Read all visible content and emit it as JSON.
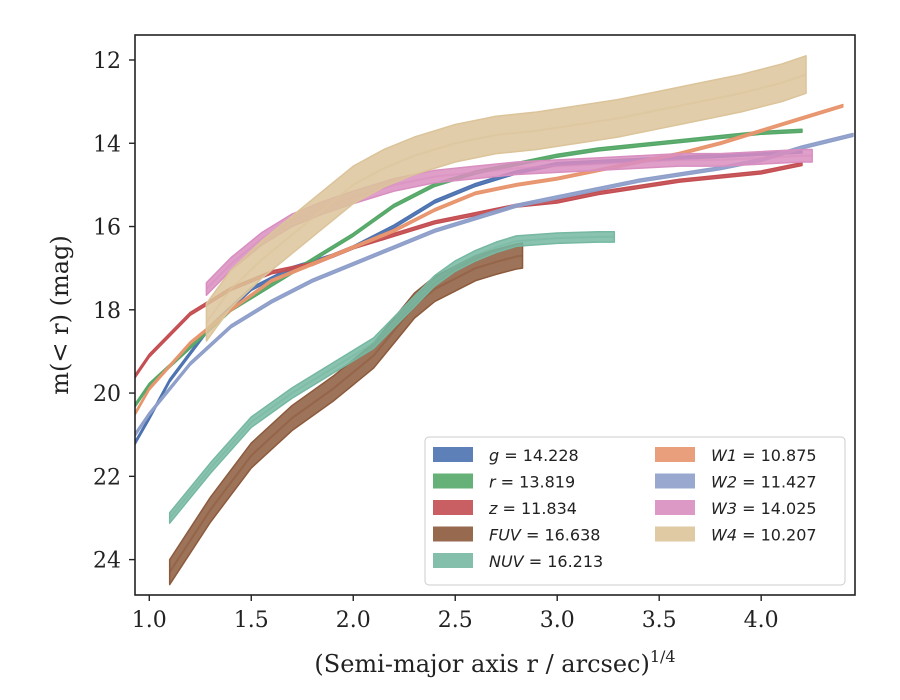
{
  "chart_data": {
    "type": "line",
    "xlabel": "(Semi-major axis r / arcsec)",
    "xlabel_sup": "1/4",
    "ylabel": "m(< r) (mag)",
    "xlim": [
      0.93,
      4.46
    ],
    "ylim": [
      24.85,
      11.4
    ],
    "y_inverted": true,
    "x_ticks": [
      1.0,
      1.5,
      2.0,
      2.5,
      3.0,
      3.5,
      4.0
    ],
    "x_tick_labels": [
      "1.0",
      "1.5",
      "2.0",
      "2.5",
      "3.0",
      "3.5",
      "4.0"
    ],
    "y_ticks": [
      12,
      14,
      16,
      18,
      20,
      22,
      24
    ],
    "y_tick_labels": [
      "12",
      "14",
      "16",
      "18",
      "20",
      "22",
      "24"
    ],
    "grid": false,
    "legend_position": "lower-right",
    "legend_columns": 2,
    "series": [
      {
        "name": "g = 14.228",
        "var": "g",
        "val": "14.228",
        "color": "#4c72b0",
        "width": 0.07,
        "x": [
          0.93,
          1.0,
          1.1,
          1.3,
          1.5,
          1.7,
          1.9,
          2.0,
          2.2,
          2.4,
          2.6,
          2.8,
          3.0,
          3.2,
          3.4,
          3.6,
          3.8,
          4.0,
          4.2
        ],
        "y": [
          21.2,
          20.6,
          19.7,
          18.4,
          17.5,
          17.0,
          16.7,
          16.5,
          16.0,
          15.4,
          15.0,
          14.7,
          14.5,
          14.45,
          14.4,
          14.35,
          14.3,
          14.25,
          14.2
        ]
      },
      {
        "name": "r = 13.819",
        "var": "r",
        "val": "13.819",
        "color": "#55a868",
        "width": 0.07,
        "x": [
          0.93,
          1.0,
          1.2,
          1.4,
          1.6,
          1.8,
          2.0,
          2.2,
          2.4,
          2.6,
          2.8,
          3.0,
          3.2,
          3.4,
          3.6,
          3.8,
          4.0,
          4.2
        ],
        "y": [
          20.3,
          19.8,
          18.9,
          18.0,
          17.4,
          16.8,
          16.2,
          15.5,
          15.0,
          14.7,
          14.5,
          14.3,
          14.15,
          14.05,
          13.95,
          13.85,
          13.75,
          13.7
        ]
      },
      {
        "name": "z = 11.834",
        "var": "z",
        "val": "11.834",
        "color": "#c44e52",
        "width": 0.07,
        "x": [
          0.93,
          1.0,
          1.2,
          1.4,
          1.6,
          1.8,
          2.0,
          2.2,
          2.4,
          2.6,
          2.8,
          3.0,
          3.2,
          3.4,
          3.6,
          3.8,
          4.0,
          4.2
        ],
        "y": [
          19.6,
          19.1,
          18.1,
          17.5,
          17.1,
          16.9,
          16.5,
          16.2,
          15.9,
          15.7,
          15.5,
          15.4,
          15.2,
          15.05,
          14.9,
          14.8,
          14.7,
          14.5
        ]
      },
      {
        "name": "FUV = 16.638",
        "var": "FUV",
        "val": "16.638",
        "color": "#8c5a3c",
        "width": 0.6,
        "x": [
          1.1,
          1.3,
          1.5,
          1.7,
          1.9,
          2.0,
          2.1,
          2.2,
          2.3,
          2.4,
          2.5,
          2.6,
          2.7,
          2.8,
          2.83
        ],
        "y": [
          24.3,
          22.8,
          21.5,
          20.6,
          19.9,
          19.5,
          19.1,
          18.5,
          17.9,
          17.5,
          17.25,
          17.0,
          16.85,
          16.72,
          16.7
        ]
      },
      {
        "name": "NUV = 16.213",
        "var": "NUV",
        "val": "16.213",
        "color": "#76b8a2",
        "width": 0.25,
        "x": [
          1.1,
          1.3,
          1.5,
          1.7,
          1.9,
          2.1,
          2.2,
          2.3,
          2.4,
          2.5,
          2.6,
          2.7,
          2.8,
          3.0,
          3.2,
          3.28
        ],
        "y": [
          23.0,
          21.8,
          20.7,
          20.0,
          19.4,
          18.8,
          18.3,
          17.8,
          17.3,
          16.95,
          16.7,
          16.5,
          16.35,
          16.28,
          16.25,
          16.25
        ]
      },
      {
        "name": "W1 = 10.875",
        "var": "W1",
        "val": "10.875",
        "color": "#e8956e",
        "width": 0.06,
        "x": [
          0.93,
          1.0,
          1.2,
          1.4,
          1.6,
          1.8,
          2.0,
          2.2,
          2.4,
          2.6,
          2.8,
          3.0,
          3.2,
          3.4,
          3.6,
          3.8,
          4.0,
          4.2,
          4.4
        ],
        "y": [
          20.5,
          19.9,
          18.8,
          18.0,
          17.3,
          16.9,
          16.5,
          16.1,
          15.6,
          15.2,
          15.0,
          14.85,
          14.65,
          14.45,
          14.25,
          14.0,
          13.7,
          13.4,
          13.1
        ]
      },
      {
        "name": "W2 = 11.427",
        "var": "W2",
        "val": "11.427",
        "color": "#8e9fca",
        "width": 0.07,
        "x": [
          0.93,
          1.0,
          1.2,
          1.4,
          1.6,
          1.8,
          2.0,
          2.2,
          2.4,
          2.6,
          2.8,
          3.0,
          3.2,
          3.4,
          3.6,
          3.8,
          4.0,
          4.2,
          4.45
        ],
        "y": [
          21.0,
          20.5,
          19.3,
          18.4,
          17.8,
          17.3,
          16.9,
          16.5,
          16.1,
          15.8,
          15.5,
          15.3,
          15.1,
          14.9,
          14.75,
          14.6,
          14.4,
          14.1,
          13.8
        ]
      },
      {
        "name": "W3 = 14.025",
        "var": "W3",
        "val": "14.025",
        "color": "#d98ec0",
        "width": 0.3,
        "x": [
          1.28,
          1.4,
          1.55,
          1.7,
          1.85,
          2.0,
          2.2,
          2.4,
          2.6,
          2.8,
          3.0,
          3.2,
          3.4,
          3.6,
          3.8,
          4.0,
          4.2,
          4.25
        ],
        "y": [
          17.5,
          16.9,
          16.3,
          15.85,
          15.55,
          15.3,
          15.0,
          14.8,
          14.7,
          14.6,
          14.55,
          14.5,
          14.45,
          14.4,
          14.4,
          14.35,
          14.3,
          14.3
        ]
      },
      {
        "name": "W4 = 10.207",
        "var": "W4",
        "val": "10.207",
        "color": "#dcc49a",
        "width": 0.9,
        "x": [
          1.28,
          1.4,
          1.55,
          1.7,
          1.85,
          2.0,
          2.15,
          2.3,
          2.5,
          2.7,
          2.9,
          3.1,
          3.3,
          3.5,
          3.7,
          3.9,
          4.1,
          4.22
        ],
        "y": [
          18.3,
          17.5,
          16.8,
          16.2,
          15.6,
          15.0,
          14.6,
          14.3,
          14.0,
          13.8,
          13.7,
          13.55,
          13.4,
          13.2,
          13.0,
          12.8,
          12.55,
          12.35
        ]
      }
    ]
  }
}
